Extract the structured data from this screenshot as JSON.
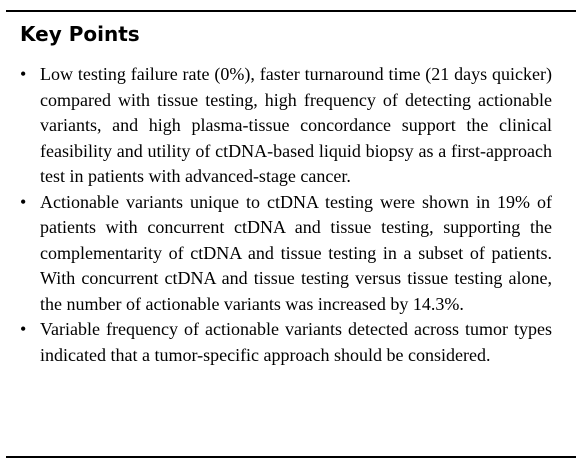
{
  "key_points": {
    "title": "Key Points",
    "bullet_glyph": "•",
    "items": [
      "Low testing failure rate (0%), faster turnaround time (21 days quicker) compared with tissue testing, high frequency of detecting actionable variants, and high plasma-tissue concordance support the clinical feasibility and utility of ctDNA-based liquid biopsy as a first-approach test in patients with advanced-stage cancer.",
      "Actionable variants unique to ctDNA testing were shown in 19% of patients with concurrent ctDNA and tissue testing, supporting the complementarity of ctDNA and tissue testing in a subset of patients. With concurrent ctDNA and tissue testing versus tissue testing alone, the number of actionable variants was increased by 14.3%.",
      "Variable frequency of actionable variants detected across tumor types indicated that a tumor-specific approach should be considered."
    ]
  }
}
